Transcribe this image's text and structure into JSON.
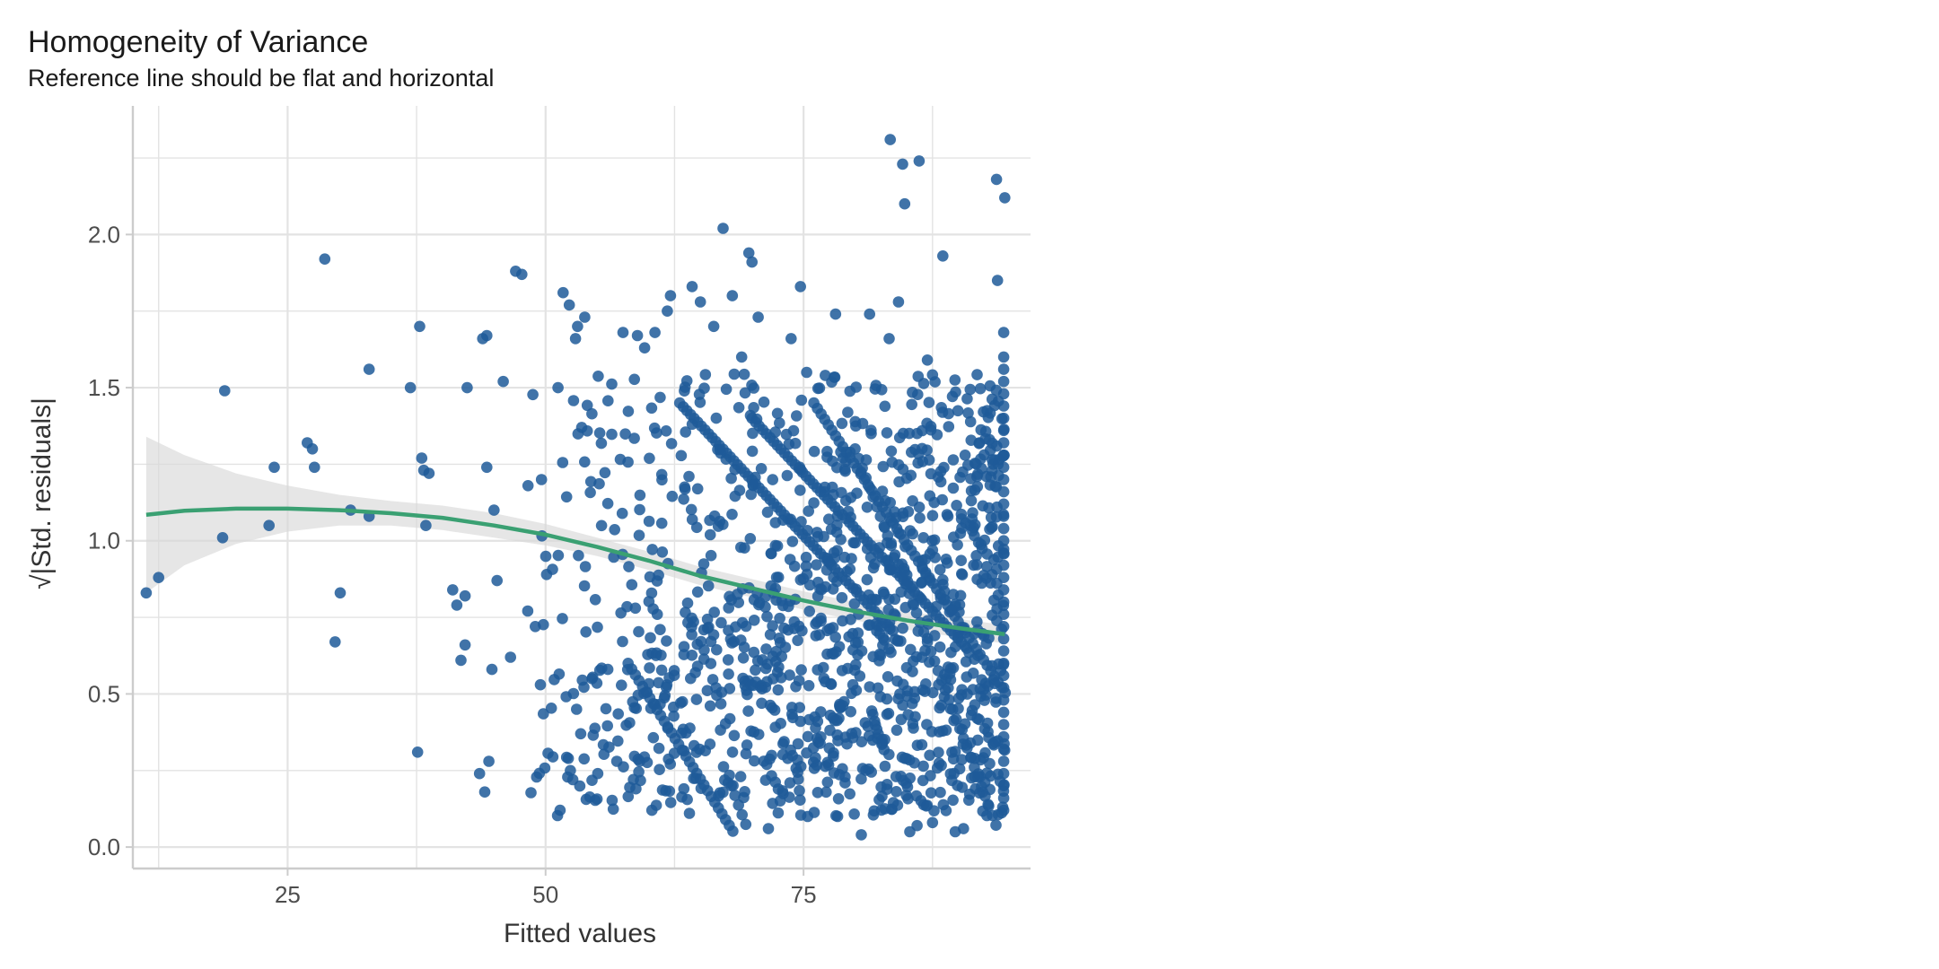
{
  "chart_data": {
    "type": "scatter",
    "title": "Homogeneity of Variance",
    "subtitle": "Reference line should be flat and horizontal",
    "xlabel": "Fitted values",
    "ylabel": "|Std. residuals|",
    "ylabel_prefix": "√",
    "xlim": [
      10,
      97
    ],
    "ylim": [
      -0.07,
      2.42
    ],
    "x_ticks": [
      25,
      50,
      75
    ],
    "x_tick_labels": [
      "25",
      "50",
      "75"
    ],
    "y_ticks": [
      0.0,
      0.5,
      1.0,
      1.5,
      2.0
    ],
    "y_tick_labels": [
      "0.0",
      "0.5",
      "1.0",
      "1.5",
      "2.0"
    ],
    "grid": true,
    "colors": {
      "points": "#1f5b99",
      "fit_line": "#3aa072",
      "ci_band": "#d9d9d9",
      "grid": "#e3e3e3",
      "axis": "#cccccc"
    },
    "series": [
      {
        "points": [
          [
            11.3,
            0.83
          ],
          [
            12.5,
            0.88
          ],
          [
            18.7,
            1.01
          ],
          [
            18.9,
            1.49
          ],
          [
            23.2,
            1.05
          ],
          [
            23.7,
            1.24
          ],
          [
            26.9,
            1.32
          ],
          [
            27.4,
            1.3
          ],
          [
            27.6,
            1.24
          ],
          [
            28.6,
            1.92
          ],
          [
            29.6,
            0.67
          ],
          [
            30.1,
            0.83
          ],
          [
            31.1,
            1.1
          ],
          [
            32.9,
            1.08
          ],
          [
            32.9,
            1.56
          ],
          [
            36.9,
            1.5
          ],
          [
            37.6,
            0.31
          ],
          [
            37.8,
            1.7
          ],
          [
            38.0,
            1.27
          ],
          [
            38.2,
            1.23
          ],
          [
            38.4,
            1.05
          ],
          [
            38.7,
            1.22
          ],
          [
            41.0,
            0.84
          ],
          [
            41.4,
            0.79
          ],
          [
            41.8,
            0.61
          ],
          [
            42.2,
            0.82
          ],
          [
            42.2,
            0.66
          ],
          [
            42.4,
            1.5
          ],
          [
            43.6,
            0.24
          ],
          [
            43.9,
            1.66
          ],
          [
            44.3,
            1.67
          ],
          [
            44.1,
            0.18
          ],
          [
            44.3,
            1.24
          ],
          [
            44.5,
            0.28
          ],
          [
            44.8,
            0.58
          ],
          [
            45.0,
            1.1
          ],
          [
            45.3,
            0.87
          ],
          [
            45.9,
            1.52
          ],
          [
            46.6,
            0.62
          ],
          [
            47.1,
            1.88
          ],
          [
            47.7,
            1.87
          ],
          [
            48.3,
            1.18
          ],
          [
            49.0,
            0.72
          ],
          [
            49.5,
            0.53
          ],
          [
            50.1,
            0.89
          ],
          [
            49.6,
            1.2
          ],
          [
            51.2,
            1.5
          ],
          [
            51.7,
            1.81
          ],
          [
            51.4,
            0.12
          ],
          [
            52.3,
            1.77
          ],
          [
            52.9,
            1.66
          ],
          [
            53.1,
            1.7
          ],
          [
            53.5,
            1.37
          ],
          [
            53.8,
            1.73
          ],
          [
            52.4,
            0.25
          ],
          [
            53.0,
            0.45
          ],
          [
            53.4,
            0.37
          ],
          [
            54.5,
            0.55
          ],
          [
            56.9,
            0.28
          ],
          [
            57.5,
            1.68
          ],
          [
            58.9,
            1.67
          ],
          [
            59.6,
            1.63
          ],
          [
            60.3,
            0.12
          ],
          [
            60.6,
            1.68
          ],
          [
            61.8,
            1.75
          ],
          [
            62.1,
            1.8
          ],
          [
            63.4,
            0.19
          ],
          [
            64.2,
            1.83
          ],
          [
            65.0,
            1.78
          ],
          [
            66.3,
            1.7
          ],
          [
            67.2,
            2.02
          ],
          [
            67.7,
            0.21
          ],
          [
            68.1,
            1.8
          ],
          [
            69.0,
            1.6
          ],
          [
            69.7,
            1.94
          ],
          [
            70.0,
            1.91
          ],
          [
            70.6,
            1.73
          ],
          [
            71.6,
            0.06
          ],
          [
            73.8,
            1.66
          ],
          [
            74.7,
            1.83
          ],
          [
            75.3,
            1.55
          ],
          [
            75.4,
            0.1
          ],
          [
            77.1,
            1.54
          ],
          [
            78.1,
            1.74
          ],
          [
            78.3,
            0.1
          ],
          [
            80.6,
            0.04
          ],
          [
            81.4,
            1.74
          ],
          [
            83.3,
            1.66
          ],
          [
            83.4,
            2.31
          ],
          [
            84.2,
            1.78
          ],
          [
            84.6,
            2.23
          ],
          [
            84.8,
            2.1
          ],
          [
            85.3,
            0.05
          ],
          [
            86.2,
            2.24
          ],
          [
            86.0,
            0.07
          ],
          [
            87.0,
            1.59
          ],
          [
            87.5,
            0.08
          ],
          [
            88.5,
            1.93
          ],
          [
            89.7,
            0.05
          ],
          [
            90.5,
            0.06
          ],
          [
            93.7,
            2.18
          ],
          [
            93.8,
            1.85
          ],
          [
            94.5,
            2.12
          ],
          [
            94.4,
            1.68
          ],
          [
            94.3,
            0.13
          ]
        ]
      }
    ],
    "fit_line": {
      "x": [
        11.3,
        15,
        20,
        25,
        30,
        35,
        40,
        45,
        50,
        55,
        60,
        65,
        70,
        75,
        80,
        85,
        90,
        94.5
      ],
      "y": [
        1.085,
        1.098,
        1.105,
        1.105,
        1.1,
        1.09,
        1.075,
        1.05,
        1.02,
        0.98,
        0.935,
        0.885,
        0.845,
        0.805,
        0.77,
        0.74,
        0.715,
        0.695
      ],
      "ci_upper": [
        1.34,
        1.28,
        1.22,
        1.18,
        1.15,
        1.13,
        1.115,
        1.09,
        1.055,
        1.01,
        0.965,
        0.915,
        0.875,
        0.835,
        0.8,
        0.77,
        0.745,
        0.725
      ],
      "ci_lower": [
        0.83,
        0.92,
        0.99,
        1.03,
        1.05,
        1.05,
        1.035,
        1.01,
        0.985,
        0.95,
        0.905,
        0.855,
        0.815,
        0.775,
        0.74,
        0.71,
        0.685,
        0.665
      ]
    }
  }
}
